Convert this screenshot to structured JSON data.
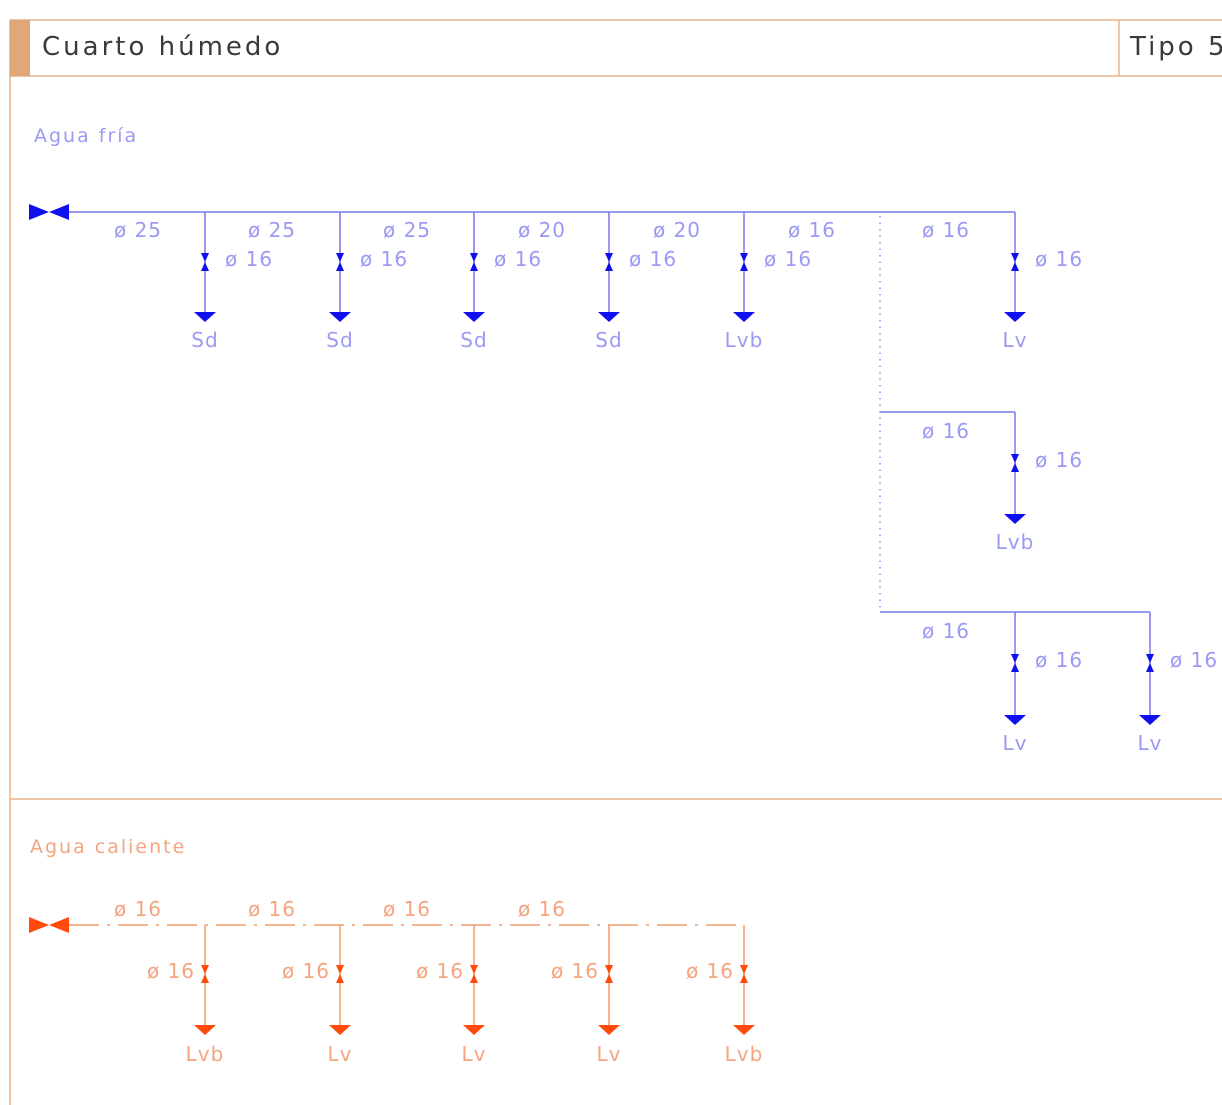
{
  "header": {
    "title": "Cuarto húmedo",
    "type_label": "Tipo 5"
  },
  "cold": {
    "section_label": "Agua fría",
    "color_line": "#7878e8",
    "color_symbol": "#1010ee",
    "color_text": "#9a9af2",
    "main_segments": [
      "ø 25",
      "ø 25",
      "ø 25",
      "ø 20",
      "ø 20",
      "ø 16",
      "ø 16"
    ],
    "drops": [
      {
        "diameter": "ø 16",
        "fixture": "Sd"
      },
      {
        "diameter": "ø 16",
        "fixture": "Sd"
      },
      {
        "diameter": "ø 16",
        "fixture": "Sd"
      },
      {
        "diameter": "ø 16",
        "fixture": "Sd"
      },
      {
        "diameter": "ø 16",
        "fixture": "Lvb"
      },
      {
        "diameter": "ø 16",
        "fixture": "Lv"
      }
    ],
    "branch2": {
      "segment": "ø 16",
      "drops": [
        {
          "diameter": "ø 16",
          "fixture": "Lvb"
        }
      ]
    },
    "branch3": {
      "segment": "ø 16",
      "drops": [
        {
          "diameter": "ø 16",
          "fixture": "Lv"
        },
        {
          "diameter": "ø 16",
          "fixture": "Lv"
        }
      ]
    }
  },
  "hot": {
    "section_label": "Agua caliente",
    "color_line": "#f39a6a",
    "color_symbol": "#ff4a0a",
    "color_text": "#f4a580",
    "main_segments": [
      "ø 16",
      "ø 16",
      "ø 16",
      "ø 16"
    ],
    "drops": [
      {
        "diameter": "ø 16",
        "fixture": "Lvb"
      },
      {
        "diameter": "ø 16",
        "fixture": "Lv"
      },
      {
        "diameter": "ø 16",
        "fixture": "Lv"
      },
      {
        "diameter": "ø 16",
        "fixture": "Lv"
      },
      {
        "diameter": "ø 16",
        "fixture": "Lvb"
      }
    ]
  },
  "frame": {
    "border_color": "#e8b48a",
    "tab_color": "#e0a878"
  }
}
